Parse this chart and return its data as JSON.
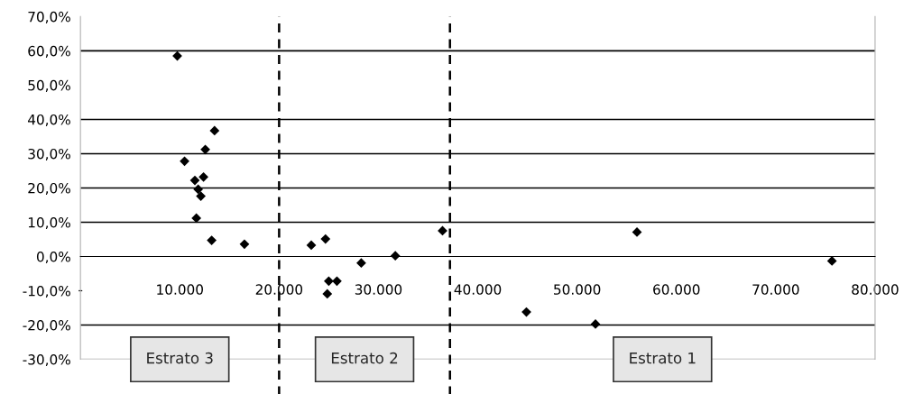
{
  "chart_data": {
    "type": "scatter",
    "x": [
      9750,
      13500,
      12570,
      10480,
      11520,
      12390,
      11850,
      12120,
      11670,
      13210,
      16510,
      23240,
      24670,
      25000,
      25820,
      24850,
      28270,
      31700,
      36450,
      56030,
      75660,
      44900,
      51850
    ],
    "series": [
      {
        "color": "#000000",
        "values": [
          58.5,
          36.7,
          31.2,
          27.8,
          22.2,
          23.2,
          19.6,
          17.6,
          11.2,
          4.7,
          3.6,
          3.3,
          5.1,
          -7.2,
          -7.2,
          -10.9,
          -1.9,
          0.2,
          7.5,
          7.1,
          -1.3,
          -16.2,
          -19.7
        ]
      }
    ],
    "marker": "diamond",
    "xlim": [
      0,
      80000
    ],
    "xticks": [
      {
        "value": 0,
        "label": "-"
      },
      {
        "value": 10000,
        "label": "10.000"
      },
      {
        "value": 20000,
        "label": "20.000"
      },
      {
        "value": 30000,
        "label": "30.000"
      },
      {
        "value": 40000,
        "label": "40.000"
      },
      {
        "value": 50000,
        "label": "50.000"
      },
      {
        "value": 60000,
        "label": "60.000"
      },
      {
        "value": 70000,
        "label": "70.000"
      },
      {
        "value": 80000,
        "label": "80.000"
      }
    ],
    "ylim": [
      -30,
      70
    ],
    "yticks": [
      {
        "value": -30,
        "label": "-30,0%"
      },
      {
        "value": -20,
        "label": "-20,0%"
      },
      {
        "value": -10,
        "label": "-10,0%"
      },
      {
        "value": 0,
        "label": "0,0%"
      },
      {
        "value": 10,
        "label": "10,0%"
      },
      {
        "value": 20,
        "label": "20,0%"
      },
      {
        "value": 30,
        "label": "30,0%"
      },
      {
        "value": 40,
        "label": "40,0%"
      },
      {
        "value": 50,
        "label": "50,0%"
      },
      {
        "value": 60,
        "label": "60,0%"
      },
      {
        "value": 70,
        "label": "70,0%"
      }
    ],
    "ref_lines": [
      {
        "axis": "y",
        "value": 60,
        "color": "#000000",
        "line_style": "solid"
      },
      {
        "axis": "y",
        "value": 40,
        "color": "#000000",
        "line_style": "solid"
      },
      {
        "axis": "y",
        "value": 30,
        "color": "#000000",
        "line_style": "solid"
      },
      {
        "axis": "y",
        "value": 20,
        "color": "#000000",
        "line_style": "solid"
      },
      {
        "axis": "y",
        "value": 10,
        "color": "#000000",
        "line_style": "solid"
      },
      {
        "axis": "y",
        "value": -20,
        "color": "#000000",
        "line_style": "solid"
      },
      {
        "axis": "x",
        "value": 20000,
        "color": "#000000",
        "line_style": "dashed"
      },
      {
        "axis": "x",
        "value": 37200,
        "color": "#000000",
        "line_style": "dashed"
      }
    ],
    "annotations": [
      "Estrato 3",
      "Estrato 2",
      "Estrato 1"
    ]
  }
}
